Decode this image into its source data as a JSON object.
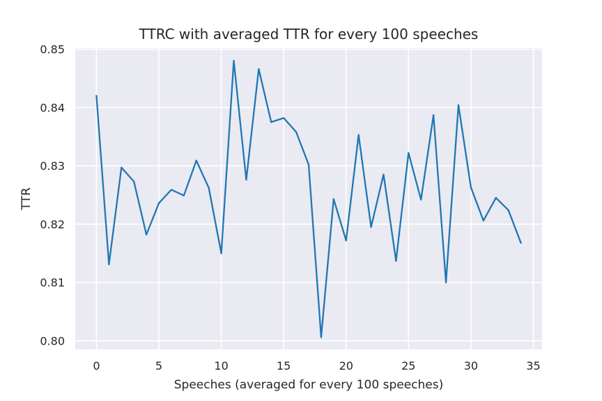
{
  "chart_data": {
    "type": "line",
    "title": "TTRC with averaged TTR for every 100 speeches",
    "xlabel": "Speeches (averaged for every 100 speeches)",
    "ylabel": "TTR",
    "xlim": [
      -1.7,
      35.7
    ],
    "ylim": [
      0.7985,
      0.8502
    ],
    "xticks": [
      0,
      5,
      10,
      15,
      20,
      25,
      30,
      35
    ],
    "xtick_labels": [
      "0",
      "5",
      "10",
      "15",
      "20",
      "25",
      "30",
      "35"
    ],
    "yticks": [
      0.8,
      0.81,
      0.82,
      0.83,
      0.84,
      0.85
    ],
    "ytick_labels": [
      "0.80",
      "0.81",
      "0.82",
      "0.83",
      "0.84",
      "0.85"
    ],
    "grid": true,
    "background": "#eaeaf2",
    "grid_color": "#ffffff",
    "line_color": "#1f77b4",
    "series": [
      {
        "x": [
          0,
          1,
          2,
          3,
          4,
          5,
          6,
          7,
          8,
          9,
          10,
          11,
          12,
          13,
          14,
          15,
          16,
          17,
          18,
          19,
          20,
          21,
          22,
          23,
          24,
          25,
          26,
          27,
          28,
          29,
          30,
          31,
          32,
          33,
          34
        ],
        "values": [
          0.842,
          0.8131,
          0.8297,
          0.8273,
          0.8182,
          0.8236,
          0.8259,
          0.8249,
          0.8309,
          0.8262,
          0.815,
          0.848,
          0.8276,
          0.8466,
          0.8375,
          0.8382,
          0.8358,
          0.8302,
          0.8006,
          0.8243,
          0.8172,
          0.8353,
          0.8195,
          0.8285,
          0.8137,
          0.8322,
          0.8242,
          0.8387,
          0.81,
          0.8404,
          0.8263,
          0.8206,
          0.8245,
          0.8224,
          0.8168
        ]
      }
    ]
  }
}
